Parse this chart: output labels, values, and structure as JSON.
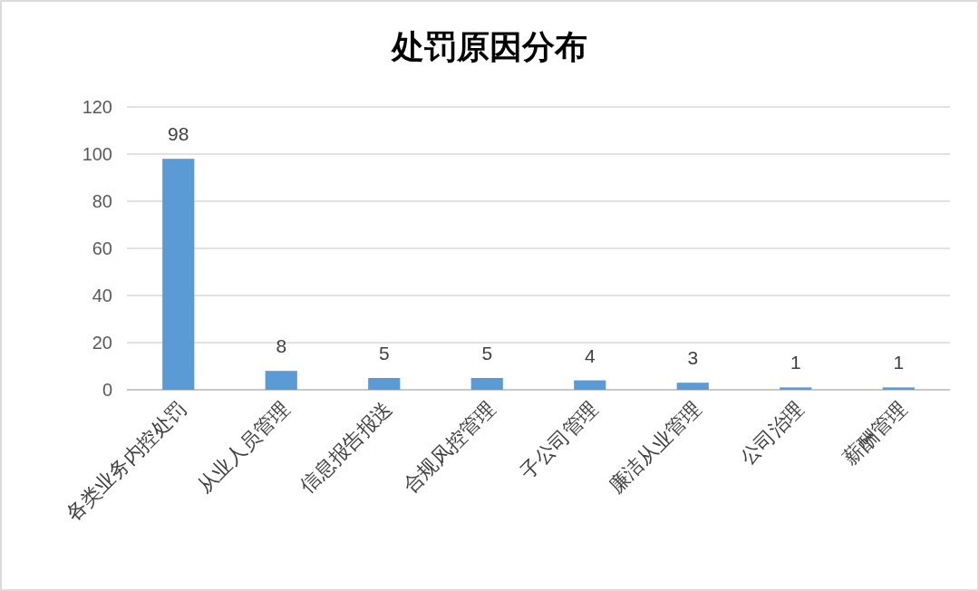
{
  "chart_data": {
    "type": "bar",
    "title": "处罚原因分布",
    "categories": [
      "各类业务内控处罚",
      "从业人员管理",
      "信息报告报送",
      "合规风控管理",
      "子公司管理",
      "廉洁从业管理",
      "公司治理",
      "薪酬管理"
    ],
    "values": [
      98,
      8,
      5,
      5,
      4,
      3,
      1,
      1
    ],
    "color": "#5b9bd5",
    "ylim": [
      0,
      120
    ],
    "yticks": [
      0,
      20,
      40,
      60,
      80,
      100,
      120
    ],
    "grid": "y",
    "data_labels": true
  }
}
